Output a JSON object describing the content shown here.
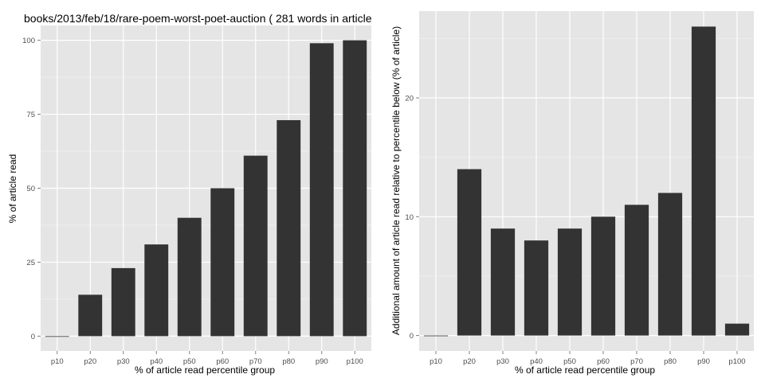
{
  "chart_data": [
    {
      "type": "bar",
      "title": "books/2013/feb/18/rare-poem-worst-poet-auction ( 281 words in article",
      "xlabel": "% of article read percentile group",
      "ylabel": "% of article read",
      "categories": [
        "p10",
        "p20",
        "p30",
        "p40",
        "p50",
        "p60",
        "p70",
        "p80",
        "p90",
        "p100"
      ],
      "values": [
        0,
        14,
        23,
        31,
        40,
        50,
        61,
        73,
        99,
        100
      ],
      "yticks": [
        "0",
        "25",
        "50",
        "75",
        "100"
      ],
      "ylim": [
        -5,
        105
      ],
      "grid": true,
      "bar_color": "#333333",
      "panel_color": "#e5e5e5"
    },
    {
      "type": "bar",
      "title": "",
      "xlabel": "% of article read percentile group",
      "ylabel": "Additional amount of article read relative to percentile below (% of article)",
      "categories": [
        "p10",
        "p20",
        "p30",
        "p40",
        "p50",
        "p60",
        "p70",
        "p80",
        "p90",
        "p100"
      ],
      "values": [
        0,
        14,
        9,
        8,
        9,
        10,
        11,
        12,
        26,
        1
      ],
      "yticks": [
        "0",
        "10",
        "20"
      ],
      "ylim": [
        -1.3,
        27.3
      ],
      "grid": true,
      "bar_color": "#333333",
      "panel_color": "#e5e5e5"
    }
  ]
}
